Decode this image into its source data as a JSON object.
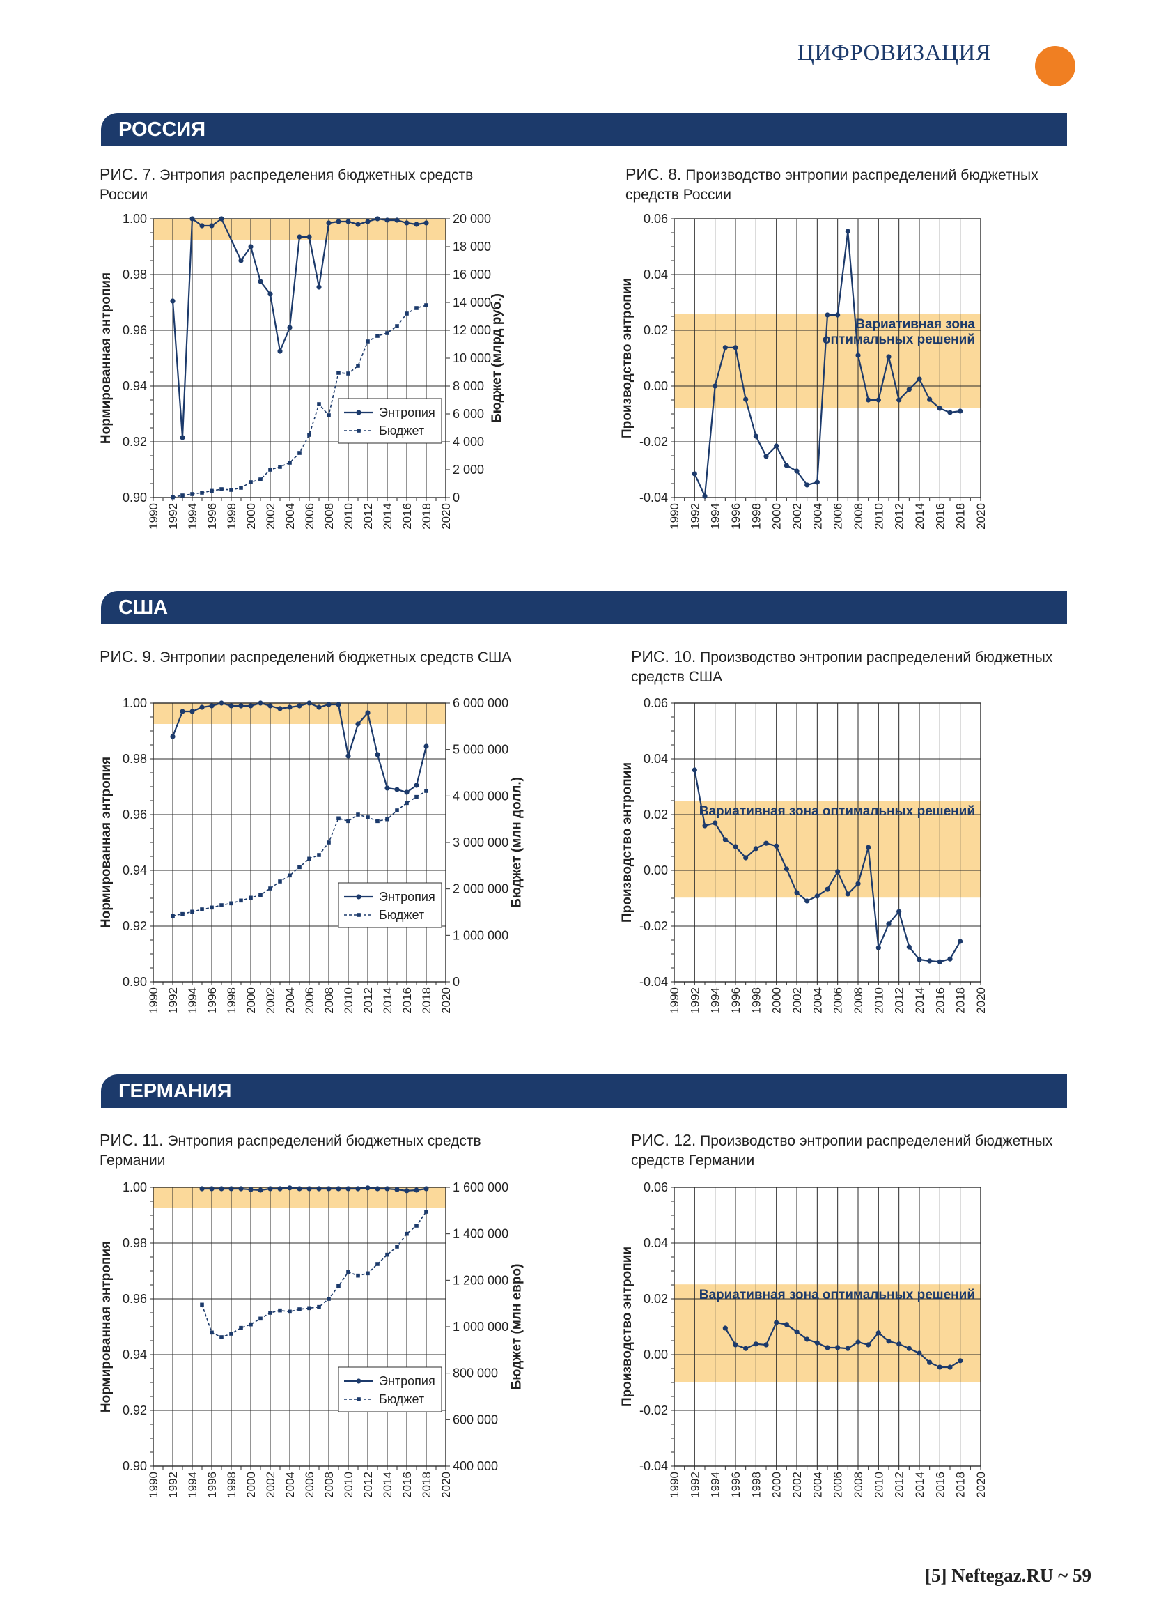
{
  "header": {
    "rubric": "ЦИФРОВИЗАЦИЯ",
    "footer": "[5] Neftegaz.RU ~ 59"
  },
  "sections": [
    {
      "title": "РОССИЯ"
    },
    {
      "title": "США"
    },
    {
      "title": "ГЕРМАНИЯ"
    }
  ],
  "colors": {
    "line": "#1c3a6b",
    "band": "#1c3a6b",
    "zone": "#fbd99a",
    "accent": "#f07f22",
    "grid": "#2b2b2b"
  },
  "chart_data": [
    {
      "id": "fig7",
      "type": "line",
      "caption_num": "РИС. 7.",
      "caption_text": "Энтропия распределения бюджетных средств России",
      "ylabel": "Нормированная энтропия",
      "y2label": "Бюджет (млрд руб.)",
      "xlim": [
        1990,
        2020
      ],
      "ylim": [
        0.9,
        1.0
      ],
      "yticks": [
        "0.90",
        "0.92",
        "0.94",
        "0.96",
        "0.98",
        "1.00"
      ],
      "y2lim": [
        0,
        20000
      ],
      "y2ticks": [
        "0",
        "2 000",
        "4 000",
        "6 000",
        "8 000",
        "10 000",
        "12 000",
        "14 000",
        "16 000",
        "18 000",
        "20 000"
      ],
      "zone": [
        0.9925,
        1.0
      ],
      "legend": {
        "series1": "Энтропия",
        "series2": "Бюджет"
      },
      "series": [
        {
          "name": "Энтропия",
          "axis": "left",
          "style": "solid",
          "x": [
            1992,
            1993,
            1994,
            1995,
            1996,
            1997,
            1999,
            2000,
            2001,
            2002,
            2003,
            2004,
            2005,
            2006,
            2007,
            2008,
            2009,
            2010,
            2011,
            2012,
            2013,
            2014,
            2015,
            2016,
            2017,
            2018
          ],
          "y": [
            0.9705,
            0.9215,
            1.0,
            0.9975,
            0.9975,
            1.0,
            0.985,
            0.99,
            0.9775,
            0.973,
            0.9525,
            0.961,
            0.9935,
            0.9935,
            0.9755,
            0.9985,
            0.999,
            0.999,
            0.998,
            0.999,
            1.0,
            0.9995,
            0.9995,
            0.9985,
            0.998,
            0.9985
          ]
        },
        {
          "name": "Бюджет",
          "axis": "right",
          "style": "dashed",
          "x": [
            1992,
            1993,
            1994,
            1995,
            1996,
            1997,
            1998,
            1999,
            2000,
            2001,
            2002,
            2003,
            2004,
            2005,
            2006,
            2007,
            2008,
            2009,
            2010,
            2011,
            2012,
            2013,
            2014,
            2015,
            2016,
            2017,
            2018
          ],
          "y": [
            20,
            150,
            250,
            350,
            480,
            600,
            550,
            700,
            1100,
            1300,
            2000,
            2200,
            2500,
            3200,
            4500,
            6700,
            5900,
            8950,
            8900,
            9450,
            11200,
            11600,
            11800,
            12300,
            13200,
            13600,
            13800
          ]
        }
      ]
    },
    {
      "id": "fig8",
      "type": "line",
      "caption_num": "РИС. 8.",
      "caption_text": "Производство энтропии распределений бюджетных средств России",
      "ylabel": "Производство энтропии",
      "xlim": [
        1990,
        2020
      ],
      "ylim": [
        -0.04,
        0.06
      ],
      "yticks": [
        "-0.04",
        "-0.02",
        "0.00",
        "0.02",
        "0.04",
        "0.06"
      ],
      "zone": [
        -0.008,
        0.026
      ],
      "zone_label": [
        "Вариативная зона",
        "оптимальных решений"
      ],
      "series": [
        {
          "name": "",
          "style": "solid",
          "x": [
            1992,
            1993,
            1994,
            1995,
            1996,
            1997,
            1998,
            1999,
            2000,
            2001,
            2002,
            2003,
            2004,
            2005,
            2006,
            2007,
            2008,
            2009,
            2010,
            2011,
            2012,
            2013,
            2014,
            2015,
            2016,
            2017,
            2018
          ],
          "y": [
            -0.0315,
            -0.0395,
            0.0,
            0.0138,
            0.0138,
            -0.0048,
            -0.018,
            -0.0252,
            -0.0215,
            -0.0285,
            -0.0305,
            -0.0355,
            -0.0345,
            0.0255,
            0.0255,
            0.0555,
            0.011,
            -0.005,
            -0.005,
            0.0105,
            -0.005,
            -0.0012,
            0.0025,
            -0.0048,
            -0.008,
            -0.0095,
            -0.009
          ]
        }
      ]
    },
    {
      "id": "fig9",
      "type": "line",
      "caption_num": "РИС. 9.",
      "caption_text": "Энтропии распределений бюджетных средств США",
      "ylabel": "Нормированная энтропия",
      "y2label": "Бюджет (млн долл.)",
      "xlim": [
        1990,
        2020
      ],
      "ylim": [
        0.9,
        1.0
      ],
      "yticks": [
        "0.90",
        "0.92",
        "0.94",
        "0.96",
        "0.98",
        "1.00"
      ],
      "y2lim": [
        0,
        6000000
      ],
      "y2ticks": [
        "0",
        "1 000 000",
        "2 000 000",
        "3 000 000",
        "4 000 000",
        "5 000 000",
        "6 000 000"
      ],
      "zone": [
        0.9925,
        1.0
      ],
      "legend": {
        "series1": "Энтропия",
        "series2": "Бюджет"
      },
      "series": [
        {
          "name": "Энтропия",
          "axis": "left",
          "style": "solid",
          "x": [
            1992,
            1993,
            1994,
            1995,
            1996,
            1997,
            1998,
            1999,
            2000,
            2001,
            2002,
            2003,
            2004,
            2005,
            2006,
            2007,
            2008,
            2009,
            2010,
            2011,
            2012,
            2013,
            2014,
            2015,
            2016,
            2017,
            2018
          ],
          "y": [
            0.988,
            0.997,
            0.997,
            0.9985,
            0.999,
            1.0,
            0.999,
            0.999,
            0.999,
            1.0,
            0.999,
            0.998,
            0.9985,
            0.999,
            1.0,
            0.9985,
            0.9995,
            0.9995,
            0.981,
            0.9925,
            0.9965,
            0.9815,
            0.9695,
            0.969,
            0.968,
            0.9705,
            0.9845
          ]
        },
        {
          "name": "Бюджет",
          "axis": "right",
          "style": "dashed",
          "x": [
            1992,
            1993,
            1994,
            1995,
            1996,
            1997,
            1998,
            1999,
            2000,
            2001,
            2002,
            2003,
            2004,
            2005,
            2006,
            2007,
            2008,
            2009,
            2010,
            2011,
            2012,
            2013,
            2014,
            2015,
            2016,
            2017,
            2018
          ],
          "y": [
            1420000,
            1460000,
            1510000,
            1560000,
            1600000,
            1650000,
            1690000,
            1750000,
            1810000,
            1870000,
            2010000,
            2160000,
            2290000,
            2470000,
            2650000,
            2730000,
            3000000,
            3520000,
            3460000,
            3600000,
            3540000,
            3460000,
            3500000,
            3690000,
            3850000,
            3980000,
            4110000
          ]
        }
      ]
    },
    {
      "id": "fig10",
      "type": "line",
      "caption_num": "РИС. 10.",
      "caption_text": "Производство энтропии распределений бюджетных средств США",
      "ylabel": "Производство энтропии",
      "xlim": [
        1990,
        2020
      ],
      "ylim": [
        -0.04,
        0.06
      ],
      "yticks": [
        "-0.04",
        "-0.02",
        "0.00",
        "0.02",
        "0.04",
        "0.06"
      ],
      "zone": [
        -0.0098,
        0.025
      ],
      "zone_label": [
        "Вариативная зона оптимальных решений"
      ],
      "series": [
        {
          "name": "",
          "style": "solid",
          "x": [
            1992,
            1993,
            1994,
            1995,
            1996,
            1997,
            1998,
            1999,
            2000,
            2001,
            2002,
            2003,
            2004,
            2005,
            2006,
            2007,
            2008,
            2009,
            2010,
            2011,
            2012,
            2013,
            2014,
            2015,
            2016,
            2017,
            2018
          ],
          "y": [
            0.036,
            0.016,
            0.017,
            0.011,
            0.0085,
            0.0045,
            0.0078,
            0.0097,
            0.0087,
            0.0005,
            -0.008,
            -0.011,
            -0.0092,
            -0.0068,
            -0.0005,
            -0.0085,
            -0.0048,
            0.0082,
            -0.0278,
            -0.0192,
            -0.0148,
            -0.0275,
            -0.032,
            -0.0325,
            -0.0328,
            -0.0318,
            -0.0255
          ]
        }
      ]
    },
    {
      "id": "fig11",
      "type": "line",
      "caption_num": "РИС. 11.",
      "caption_text": "Энтропия распределений бюджетных средств Германии",
      "ylabel": "Нормированная энтропия",
      "y2label": "Бюджет (млн евро)",
      "xlim": [
        1990,
        2020
      ],
      "ylim": [
        0.9,
        1.0
      ],
      "yticks": [
        "0.90",
        "0.92",
        "0.94",
        "0.96",
        "0.98",
        "1.00"
      ],
      "y2lim": [
        400000,
        1600000
      ],
      "y2ticks": [
        "400 000",
        "600 000",
        "800 000",
        "1 000 000",
        "1 200 000",
        "1 400 000",
        "1 600 000"
      ],
      "zone": [
        0.9925,
        1.0
      ],
      "legend": {
        "series1": "Энтропия",
        "series2": "Бюджет"
      },
      "series": [
        {
          "name": "Энтропия",
          "axis": "left",
          "style": "solid",
          "x": [
            1995,
            1996,
            1997,
            1998,
            1999,
            2000,
            2001,
            2002,
            2003,
            2004,
            2005,
            2006,
            2007,
            2008,
            2009,
            2010,
            2011,
            2012,
            2013,
            2014,
            2015,
            2016,
            2017,
            2018
          ],
          "y": [
            0.9995,
            0.9995,
            0.9995,
            0.9995,
            0.9995,
            0.9992,
            0.999,
            0.9995,
            0.9995,
            0.9998,
            0.9995,
            0.9995,
            0.9995,
            0.9995,
            0.9995,
            0.9995,
            0.9995,
            0.9998,
            0.9995,
            0.9995,
            0.9992,
            0.9988,
            0.999,
            0.9995
          ]
        },
        {
          "name": "Бюджет",
          "axis": "right",
          "style": "dashed",
          "x": [
            1995,
            1996,
            1997,
            1998,
            1999,
            2000,
            2001,
            2002,
            2003,
            2004,
            2005,
            2006,
            2007,
            2008,
            2009,
            2010,
            2011,
            2012,
            2013,
            2014,
            2015,
            2016,
            2017,
            2018
          ],
          "y": [
            1095000,
            975000,
            955000,
            970000,
            995000,
            1010000,
            1035000,
            1060000,
            1070000,
            1065000,
            1075000,
            1080000,
            1085000,
            1120000,
            1175000,
            1235000,
            1220000,
            1230000,
            1270000,
            1310000,
            1345000,
            1400000,
            1435000,
            1495000
          ]
        }
      ]
    },
    {
      "id": "fig12",
      "type": "line",
      "caption_num": "РИС. 12.",
      "caption_text": "Производство энтропии распределений бюджетных средств Германии",
      "ylabel": "Производство энтропии",
      "xlim": [
        1990,
        2020
      ],
      "ylim": [
        -0.04,
        0.06
      ],
      "yticks": [
        "-0.04",
        "-0.02",
        "0.00",
        "0.02",
        "0.04",
        "0.06"
      ],
      "zone": [
        -0.0098,
        0.0252
      ],
      "zone_label": [
        "Вариативная зона оптимальных решений"
      ],
      "series": [
        {
          "name": "",
          "style": "solid",
          "x": [
            1995,
            1996,
            1997,
            1998,
            1999,
            2000,
            2001,
            2002,
            2003,
            2004,
            2005,
            2006,
            2007,
            2008,
            2009,
            2010,
            2011,
            2012,
            2013,
            2014,
            2015,
            2016,
            2017,
            2018
          ],
          "y": [
            0.0095,
            0.0035,
            0.0022,
            0.0038,
            0.0035,
            0.0115,
            0.0108,
            0.0082,
            0.0055,
            0.0042,
            0.0025,
            0.0025,
            0.0022,
            0.0045,
            0.0035,
            0.0078,
            0.0048,
            0.0038,
            0.0022,
            0.0005,
            -0.0028,
            -0.0045,
            -0.0045,
            -0.0022
          ]
        }
      ]
    }
  ]
}
